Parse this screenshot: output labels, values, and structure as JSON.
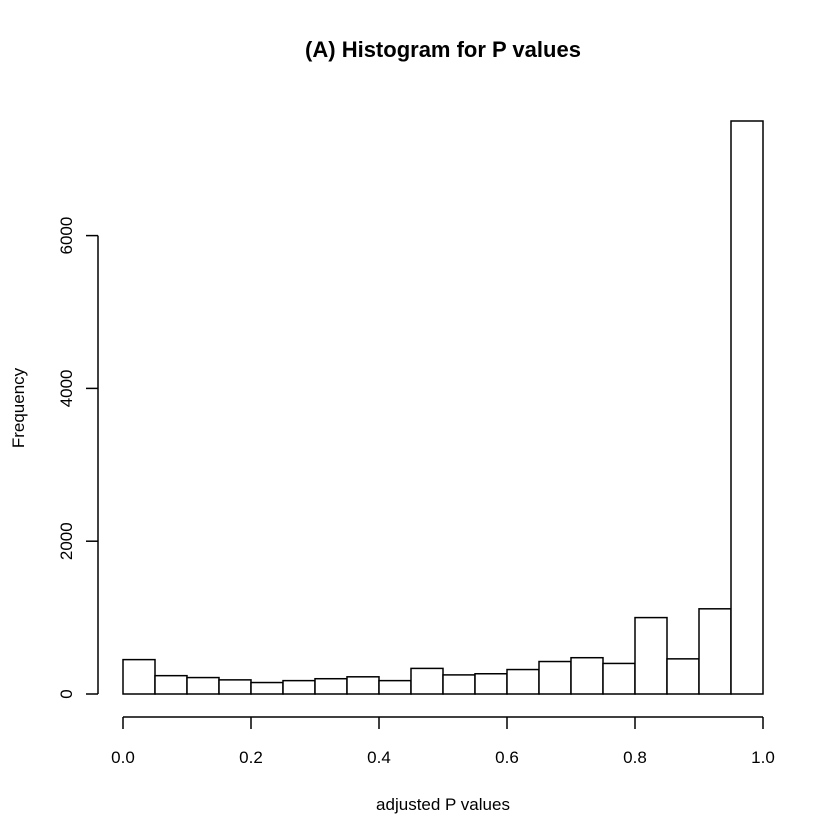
{
  "chart_data": {
    "type": "bar",
    "title": "(A) Histogram for P values",
    "xlabel": "adjusted P values",
    "ylabel": "Frequency",
    "bin_edges": [
      0.0,
      0.05,
      0.1,
      0.15,
      0.2,
      0.25,
      0.3,
      0.35,
      0.4,
      0.45,
      0.5,
      0.55,
      0.6,
      0.65,
      0.7,
      0.75,
      0.8,
      0.85,
      0.9,
      0.95,
      1.0
    ],
    "values": [
      450,
      240,
      215,
      185,
      150,
      175,
      200,
      225,
      175,
      335,
      250,
      265,
      320,
      425,
      475,
      400,
      1000,
      460,
      1115,
      7500
    ],
    "xlim": [
      0,
      1
    ],
    "ylim": [
      0,
      7500
    ],
    "x_ticks": [
      "0.0",
      "0.2",
      "0.4",
      "0.6",
      "0.8",
      "1.0"
    ],
    "y_ticks": [
      "0",
      "2000",
      "4000",
      "6000"
    ],
    "grid": false
  }
}
